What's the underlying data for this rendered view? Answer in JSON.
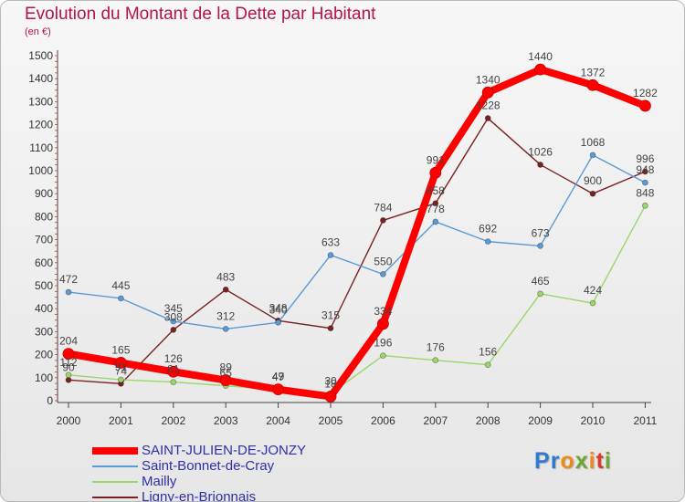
{
  "chart_data": {
    "type": "line",
    "title": "Evolution du Montant de la Dette par Habitant",
    "subtitle": "(en €)",
    "x": [
      "2000",
      "2001",
      "2002",
      "2003",
      "2004",
      "2005",
      "2006",
      "2007",
      "2008",
      "2009",
      "2010",
      "2011"
    ],
    "ylim": [
      0,
      1500
    ],
    "yticks": [
      0,
      100,
      200,
      300,
      400,
      500,
      600,
      700,
      800,
      900,
      1000,
      1100,
      1200,
      1300,
      1400,
      1500
    ],
    "grid": false,
    "legend_position": "bottom-left",
    "series": [
      {
        "name": "SAINT-JULIEN-DE-JONZY",
        "color": "#ff0000",
        "values": [
          204,
          165,
          126,
          89,
          49,
          18,
          334,
          991,
          1340,
          1440,
          1372,
          1282
        ]
      },
      {
        "name": "Saint-Bonnet-de-Cray",
        "color": "#5b9bd5",
        "values": [
          472,
          445,
          345,
          312,
          340,
          633,
          550,
          778,
          692,
          673,
          1068,
          948
        ]
      },
      {
        "name": "Mailly",
        "color": "#9ad66a",
        "values": [
          112,
          91,
          81,
          65,
          47,
          30,
          196,
          176,
          156,
          465,
          424,
          848
        ]
      },
      {
        "name": "Ligny-en-Brionnais",
        "color": "#7a2222",
        "values": [
          90,
          74,
          308,
          483,
          348,
          315,
          784,
          858,
          1228,
          1026,
          900,
          996
        ]
      }
    ]
  },
  "logo": {
    "text": "Proxiti"
  }
}
